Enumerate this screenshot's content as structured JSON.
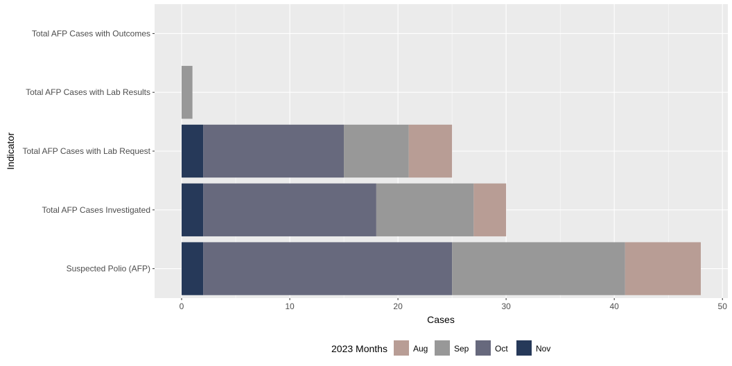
{
  "chart_data": {
    "type": "bar",
    "orientation": "horizontal",
    "stacked": true,
    "categories": [
      "Suspected Polio (AFP)",
      "Total AFP Cases Investigated",
      "Total AFP Cases with Lab Request",
      "Total AFP Cases with Lab Results",
      "Total AFP Cases with Outcomes"
    ],
    "series": [
      {
        "name": "Nov",
        "color": "#263959",
        "values": [
          2,
          2,
          2,
          0,
          0
        ]
      },
      {
        "name": "Oct",
        "color": "#67697D",
        "values": [
          23,
          16,
          13,
          0,
          0
        ]
      },
      {
        "name": "Sep",
        "color": "#989898",
        "values": [
          16,
          9,
          6,
          1,
          0
        ]
      },
      {
        "name": "Aug",
        "color": "#B89D95",
        "values": [
          7,
          3,
          4,
          0,
          0
        ]
      }
    ],
    "xlabel": "Cases",
    "ylabel": "Indicator",
    "xlim": [
      -2.5,
      50.5
    ],
    "xticks": [
      0,
      10,
      20,
      30,
      40,
      50
    ],
    "grid": true,
    "legend": {
      "title": "2023 Months",
      "placement": "bottom",
      "order": [
        "Aug",
        "Sep",
        "Oct",
        "Nov"
      ]
    }
  },
  "colors": {
    "panel_background": "#EBEBEB",
    "grid_major": "#FFFFFF"
  }
}
